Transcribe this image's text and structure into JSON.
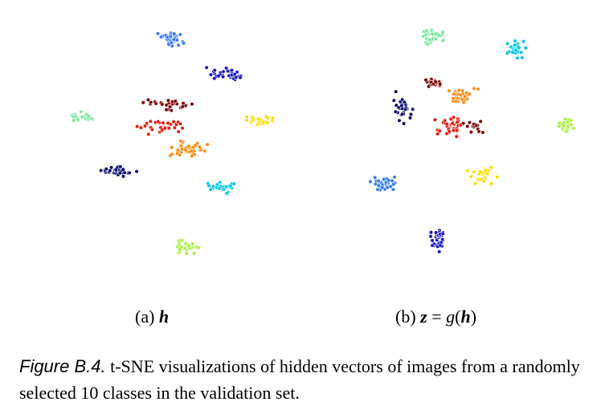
{
  "colors": {
    "c0": "#3a7cf0",
    "c1": "#1515c8",
    "c2": "#7ee89c",
    "c3": "#00c8e6",
    "c4": "#05086e",
    "c5": "#ff8a14",
    "c6": "#e81c0e",
    "c7": "#7d0000",
    "c8": "#ffdd00",
    "c9": "#a8f246"
  },
  "panels": {
    "a": {
      "label_prefix": "(a)",
      "label_var": "h"
    },
    "b": {
      "label_prefix": "(b)",
      "label_var1": "z",
      "label_eq": "=",
      "label_fn": "g",
      "label_open": "(",
      "label_var2": "h",
      "label_close": ")"
    }
  },
  "caption": {
    "label": "Figure B.4.",
    "text": "t-SNE visualizations of hidden vectors of images from a randomly selected 10 classes in the validation set."
  }
}
